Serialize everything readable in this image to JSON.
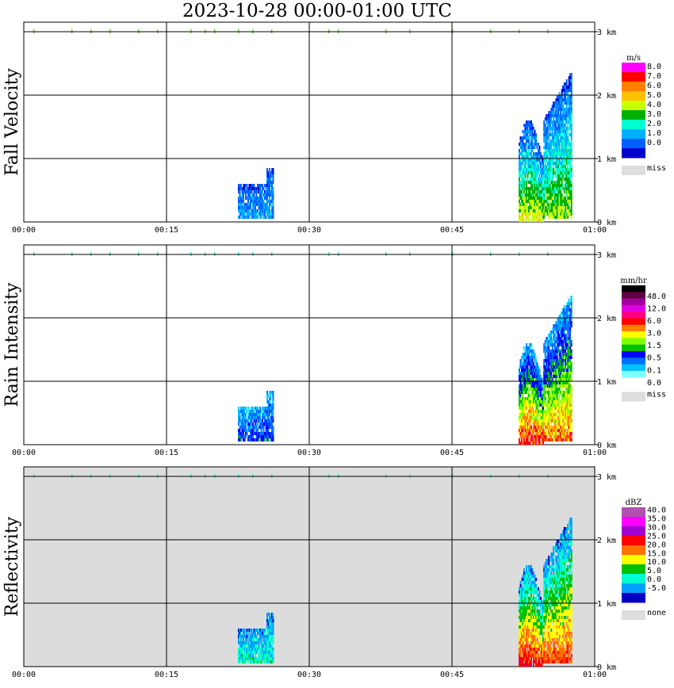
{
  "title": "2023-10-28   00:00-01:00 UTC",
  "x_ticks": [
    "00:00",
    "00:15",
    "00:30",
    "00:45",
    "01:00"
  ],
  "y_ticks": [
    "0 km",
    "1 km",
    "2 km",
    "3 km"
  ],
  "chart_data": [
    {
      "type": "heatmap",
      "ylabel": "Fall Velocity",
      "unit": "m/s",
      "background": "#ffffff",
      "colorbar": {
        "colors": [
          "#ff00ff",
          "#ff0000",
          "#ff8000",
          "#ffc000",
          "#c8ff00",
          "#00b000",
          "#00ffd0",
          "#00b0ff",
          "#0060ff",
          "#0000cc"
        ],
        "labels": [
          "8.0",
          "7.0",
          "6.0",
          "5.0",
          "4.0",
          "3.0",
          "2.0",
          "1.0",
          "0.0"
        ],
        "miss_label": "miss"
      },
      "xlim_min": [
        0,
        60
      ],
      "ylim_km": [
        0,
        3.2
      ]
    },
    {
      "type": "heatmap",
      "ylabel": "Rain Intensity",
      "unit": "mm/hr",
      "background": "#ffffff",
      "colorbar": {
        "colors": [
          "#000000",
          "#600040",
          "#a000a0",
          "#e000e0",
          "#ff0080",
          "#ff0000",
          "#ff8000",
          "#ffff00",
          "#80ff00",
          "#00c000",
          "#0000ff",
          "#0070ff",
          "#00c0ff",
          "#80ffff",
          "#ffffff"
        ],
        "labels": [
          "48.0",
          "12.0",
          "6.0",
          "3.0",
          "1.5",
          "0.5",
          "0.1",
          "0.0"
        ],
        "miss_label": "miss"
      },
      "xlim_min": [
        0,
        60
      ],
      "ylim_km": [
        0,
        3.2
      ]
    },
    {
      "type": "heatmap",
      "ylabel": "Reflectivity",
      "unit": "dBZ",
      "background": "#dcdcdc",
      "colorbar": {
        "colors": [
          "#b050b0",
          "#ff00ff",
          "#a000d0",
          "#ff0000",
          "#ff7000",
          "#ffff00",
          "#00c000",
          "#00ffd0",
          "#00a0ff",
          "#0000c0"
        ],
        "labels": [
          "40.0",
          "35.0",
          "30.0",
          "25.0",
          "20.0",
          "15.0",
          "10.0",
          "5.0",
          "0.0",
          "-5.0"
        ],
        "miss_label": "none"
      },
      "xlim_min": [
        0,
        60
      ],
      "ylim_km": [
        0,
        3.2
      ]
    }
  ]
}
